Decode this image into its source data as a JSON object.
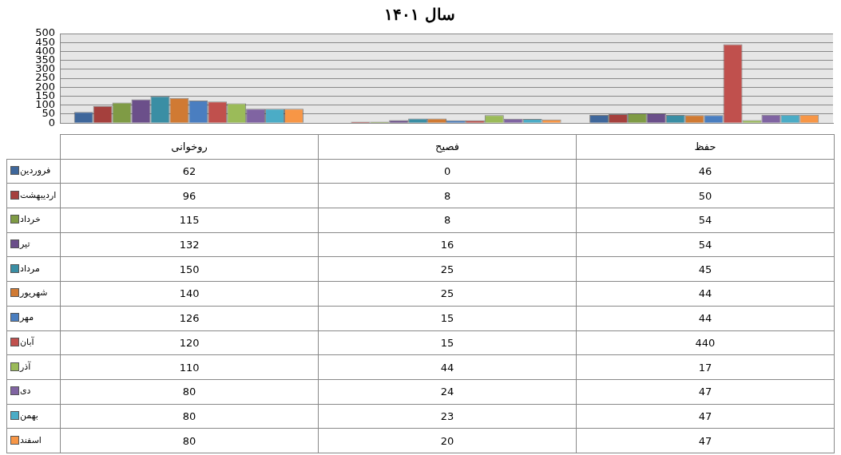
{
  "chart_data": {
    "type": "bar",
    "title": "سال ۱۴۰۱",
    "categories": [
      "روخوانی",
      "فصیح",
      "حفظ"
    ],
    "ylim": [
      0,
      500
    ],
    "yticks": [
      0,
      50,
      100,
      150,
      200,
      250,
      300,
      350,
      400,
      450,
      500
    ],
    "grid": "y",
    "legend": "left",
    "data_labels": true,
    "series": [
      {
        "name": "فروردین",
        "color": "#3f679b",
        "values": [
          62,
          0,
          46
        ]
      },
      {
        "name": "اردیبهشت",
        "color": "#a5403d",
        "values": [
          96,
          8,
          50
        ]
      },
      {
        "name": "خرداد",
        "color": "#7f9b45",
        "values": [
          115,
          8,
          54
        ]
      },
      {
        "name": "تیر",
        "color": "#6b4f8a",
        "values": [
          132,
          16,
          54
        ]
      },
      {
        "name": "مرداد",
        "color": "#3a8ea4",
        "values": [
          150,
          25,
          45
        ]
      },
      {
        "name": "شهریور",
        "color": "#d07a33",
        "values": [
          140,
          25,
          44
        ]
      },
      {
        "name": "مهر",
        "color": "#4a7ec0",
        "values": [
          126,
          15,
          44
        ]
      },
      {
        "name": "آبان",
        "color": "#c0504d",
        "values": [
          120,
          15,
          440
        ]
      },
      {
        "name": "آذر",
        "color": "#9bbb59",
        "values": [
          110,
          44,
          17
        ]
      },
      {
        "name": "دی",
        "color": "#8064a2",
        "values": [
          80,
          24,
          47
        ]
      },
      {
        "name": "بهمن",
        "color": "#4bacc6",
        "values": [
          80,
          23,
          47
        ]
      },
      {
        "name": "اسفند",
        "color": "#f79646",
        "values": [
          80,
          20,
          47
        ]
      }
    ]
  }
}
